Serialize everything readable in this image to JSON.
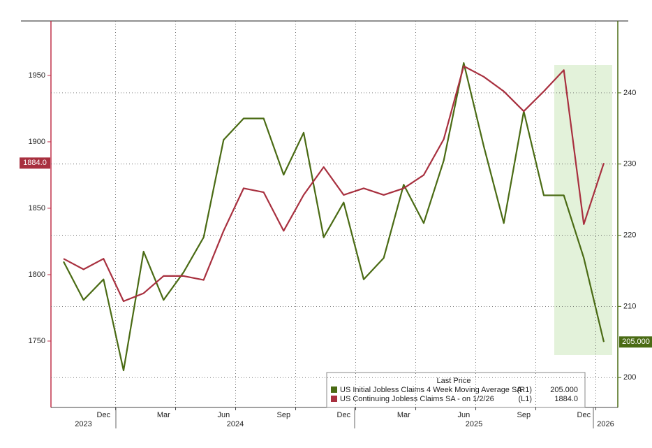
{
  "chart_data": {
    "type": "line",
    "x": [
      "2023-10",
      "2023-11",
      "2023-12",
      "2024-01",
      "2024-02",
      "2024-03",
      "2024-04",
      "2024-05",
      "2024-06",
      "2024-07",
      "2024-08",
      "2024-09",
      "2024-10",
      "2024-11",
      "2024-12",
      "2025-01",
      "2025-02",
      "2025-03",
      "2025-04",
      "2025-05",
      "2025-06",
      "2025-07",
      "2025-08",
      "2025-09",
      "2025-10",
      "2025-11",
      "2025-12",
      "2026-01"
    ],
    "xlim": [
      "2023-10",
      "2026-01"
    ],
    "xticks": [
      {
        "value": "2023-12",
        "label": "Dec"
      },
      {
        "value": "2024-03",
        "label": "Mar"
      },
      {
        "value": "2024-06",
        "label": "Jun"
      },
      {
        "value": "2024-09",
        "label": "Sep"
      },
      {
        "value": "2024-12",
        "label": "Dec"
      },
      {
        "value": "2025-03",
        "label": "Mar"
      },
      {
        "value": "2025-06",
        "label": "Jun"
      },
      {
        "value": "2025-09",
        "label": "Sep"
      },
      {
        "value": "2025-12",
        "label": "Dec"
      }
    ],
    "years": [
      "2023",
      "2024",
      "2025",
      "2026"
    ],
    "ylim": [
      1700,
      1991
    ],
    "yticks": [
      1750,
      1800,
      1850,
      1900,
      1950
    ],
    "y2lim": [
      195.8,
      250.1
    ],
    "y2ticks": [
      200,
      210,
      220,
      230,
      240
    ],
    "grid": true,
    "legend_title": "Last Price",
    "series": [
      {
        "name": "US Initial Jobless Claims 4 Week Moving Average SA",
        "axis_tag": "(R1)",
        "last_label": "205.000",
        "color": "#4a6b14",
        "axis": "y2",
        "values": [
          216.3,
          210.9,
          213.8,
          201,
          217.7,
          210.9,
          214.8,
          219.7,
          233.4,
          236.4,
          236.4,
          228.5,
          234.4,
          219.7,
          224.6,
          213.8,
          216.8,
          227.1,
          221.7,
          230.5,
          244.2,
          232.5,
          221.7,
          237.4,
          225.6,
          225.6,
          216.8,
          205
        ]
      },
      {
        "name": "US Continuing Jobless Claims SA -  on 1/2/26",
        "axis_tag": "(L1)",
        "last_label": "1884.0",
        "color": "#a8303f",
        "axis": "y",
        "values": [
          1812,
          1804,
          1812,
          1780,
          1786,
          1799,
          1799,
          1796,
          1833,
          1865,
          1862,
          1833,
          1860,
          1881,
          1860,
          1865,
          1860,
          1865,
          1875,
          1902,
          1957,
          1949,
          1938,
          1923,
          1938,
          1954,
          1838,
          1884
        ]
      }
    ]
  }
}
